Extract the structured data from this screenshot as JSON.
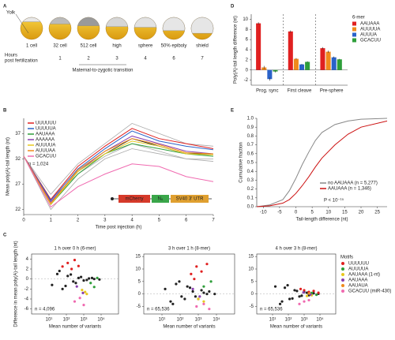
{
  "panels": [
    "A",
    "B",
    "C",
    "D",
    "E"
  ],
  "panel_a": {
    "stages": [
      "1 cell",
      "32 cell",
      "512 cell",
      "high",
      "sphere",
      "50% epiboly",
      "shield"
    ],
    "hours_label": [
      "Hours",
      "post fertilization"
    ],
    "hours": [
      "1",
      "2",
      "3",
      "4",
      "6",
      "7"
    ],
    "transition": "Maternal-to-zygotic transition",
    "yolk_label": "Yolk"
  },
  "chart_data": [
    {
      "type": "line",
      "xlabel": "Time post injection (h)",
      "ylabel": "Mean poly(A)-tail length (nt)",
      "annotation": "n = 1,024",
      "x": [
        0,
        1,
        2,
        3,
        4,
        5,
        6,
        7
      ],
      "xlim": [
        0,
        7
      ],
      "xticks": [
        0,
        1,
        2,
        3,
        4,
        5,
        6,
        7
      ],
      "ylim": [
        21,
        40
      ],
      "yticks": [
        22,
        27,
        32,
        37
      ],
      "legend": "upper-left",
      "construct": [
        "mCherry",
        "N₆",
        "SV40 3′ UTR"
      ],
      "series": [
        {
          "color": "#aaaaaa",
          "values": [
            32.5,
            22.0,
            28.0,
            32.0,
            34.0,
            33.0,
            32.0,
            31.5
          ]
        },
        {
          "color": "#aaaaaa",
          "values": [
            32.5,
            25.0,
            31.0,
            35.0,
            39.0,
            37.0,
            35.0,
            34.5
          ]
        },
        {
          "color": "#aaaaaa",
          "values": [
            32.5,
            24.0,
            29.0,
            32.5,
            35.0,
            33.5,
            32.0,
            32.0
          ]
        },
        {
          "color": "#111111",
          "values": [
            32.5,
            23.5,
            29.5,
            33.0,
            36.0,
            34.5,
            33.0,
            33.0
          ]
        },
        {
          "name": "UUUUUU",
          "color": "#e02020",
          "values": [
            32.5,
            24.0,
            30.5,
            34.5,
            38.0,
            36.0,
            35.0,
            34.0
          ]
        },
        {
          "name": "UUUUUA",
          "color": "#2a62c9",
          "values": [
            32.5,
            23.8,
            30.0,
            34.0,
            37.5,
            35.5,
            34.5,
            33.8
          ]
        },
        {
          "name": "AAUAAA",
          "color": "#2e9e3a",
          "values": [
            32.5,
            23.0,
            29.0,
            33.0,
            35.0,
            34.0,
            33.0,
            32.5
          ]
        },
        {
          "name": "AAAAAA",
          "color": "#8a3fb0",
          "values": [
            32.5,
            23.5,
            29.5,
            33.5,
            36.5,
            35.0,
            33.5,
            33.0
          ]
        },
        {
          "name": "AUUUUA",
          "color": "#e8c81e",
          "values": [
            32.5,
            23.0,
            29.5,
            33.0,
            35.5,
            34.5,
            33.0,
            32.8
          ]
        },
        {
          "name": "AUUUAA",
          "color": "#f08a1c",
          "values": [
            32.5,
            23.2,
            29.8,
            33.5,
            36.0,
            34.8,
            33.2,
            33.0
          ]
        },
        {
          "name": "GCACUU",
          "color": "#f06ab0",
          "values": [
            32.5,
            22.5,
            26.5,
            29.0,
            31.0,
            30.5,
            28.5,
            27.5
          ]
        }
      ]
    },
    {
      "type": "scatter",
      "title": "1 h over 0 h (6-mer)",
      "ylabel": "Difference in mean poly(A)-tail length (nt)",
      "xlabel": "Mean number of variants",
      "annotation": "n = 4,096",
      "frame": true,
      "xscale": "log",
      "xlim": [
        1,
        100000
      ],
      "xticks": [
        {
          "value": 10,
          "label": "10¹"
        },
        {
          "value": 100,
          "label": "10²"
        },
        {
          "value": 1000,
          "label": "10³"
        },
        {
          "value": 10000,
          "label": "10⁴"
        }
      ],
      "ylim": [
        -7,
        5
      ],
      "yticks": [
        -6,
        -4,
        -2,
        0,
        2,
        4
      ],
      "series": [
        {
          "color": "#222222",
          "x": [
            15,
            30,
            60,
            120,
            250,
            500,
            1000,
            2000,
            4000,
            8000,
            40,
            90,
            180,
            350,
            700,
            1500,
            3000
          ],
          "values": [
            -1.2,
            1.0,
            -2.0,
            0.6,
            -0.5,
            0.2,
            -0.3,
            0.1,
            0.0,
            -0.1,
            1.6,
            -1.4,
            0.9,
            -0.8,
            0.4,
            -0.2,
            0.2
          ]
        },
        {
          "color": "#e02020",
          "x": [
            60,
            120,
            200,
            300,
            500
          ],
          "values": [
            2.5,
            3.2,
            2.0,
            3.8,
            2.6
          ]
        },
        {
          "color": "#2e9e3a",
          "x": [
            2500,
            4000,
            6000
          ],
          "values": [
            -0.8,
            -1.6,
            0.2
          ]
        },
        {
          "color": "#e8c81e",
          "x": [
            800,
            1500,
            1200
          ],
          "values": [
            -2.2,
            -3.0,
            -2.6
          ]
        },
        {
          "color": "#8a3fb0",
          "x": [
            400,
            900
          ],
          "values": [
            -1.5,
            -2.8
          ]
        },
        {
          "color": "#f06ab0",
          "x": [
            300,
            600,
            1000
          ],
          "values": [
            -4.5,
            -3.8,
            -5.2
          ]
        }
      ]
    },
    {
      "type": "scatter",
      "title": "3 h over 1 h (8-mer)",
      "xlabel": "Mean number of variants",
      "annotation": "n = 65,536",
      "frame": true,
      "xscale": "log",
      "xlim": [
        1,
        100000
      ],
      "xticks": [
        {
          "value": 10,
          "label": "10¹"
        },
        {
          "value": 100,
          "label": "10²"
        },
        {
          "value": 1000,
          "label": "10³"
        },
        {
          "value": 10000,
          "label": "10⁴"
        }
      ],
      "ylim": [
        -8,
        16
      ],
      "yticks": [
        -5,
        0,
        5,
        10,
        15
      ],
      "series": [
        {
          "color": "#222222",
          "x": [
            15,
            30,
            60,
            120,
            250,
            500,
            1000,
            2000,
            4000,
            8000,
            40,
            90,
            180,
            350,
            700,
            1500,
            3000
          ],
          "values": [
            2,
            -3,
            4,
            -1,
            3,
            1,
            -2,
            0.5,
            1,
            0,
            -4,
            5,
            -2,
            2.5,
            -1,
            1.5,
            0
          ]
        },
        {
          "color": "#e02020",
          "x": [
            400,
            800,
            1500,
            3000,
            600
          ],
          "values": [
            8,
            11,
            9,
            12,
            6
          ]
        },
        {
          "color": "#2e9e3a",
          "x": [
            2000,
            5000
          ],
          "values": [
            3,
            5
          ]
        },
        {
          "color": "#e8c81e",
          "x": [
            1000,
            2000
          ],
          "values": [
            -2,
            -3
          ]
        },
        {
          "color": "#8a3fb0",
          "x": [
            500,
            1200
          ],
          "values": [
            2,
            -1
          ]
        },
        {
          "color": "#f06ab0",
          "x": [
            800,
            2000,
            4000
          ],
          "values": [
            -5,
            -4,
            -6
          ]
        }
      ]
    },
    {
      "type": "scatter",
      "title": "4 h over 3 h (8-mer)",
      "xlabel": "Mean number of variants",
      "annotation": "n = 65,536",
      "frame": true,
      "xscale": "log",
      "legend": "right",
      "legend_title": "Motifs",
      "xlim": [
        1,
        100000
      ],
      "xticks": [
        {
          "value": 10,
          "label": "10¹"
        },
        {
          "value": 100,
          "label": "10²"
        },
        {
          "value": 1000,
          "label": "10³"
        },
        {
          "value": 10000,
          "label": "10⁴"
        }
      ],
      "ylim": [
        -8,
        16
      ],
      "yticks": [
        -5,
        0,
        5,
        10,
        15
      ],
      "series": [
        {
          "color": "#222222",
          "x": [
            15,
            30,
            60,
            120,
            250,
            500,
            1000,
            2000,
            4000,
            8000,
            40,
            90,
            180,
            350,
            700,
            1500,
            3000
          ],
          "values": [
            3,
            -4,
            2.5,
            -2,
            1.5,
            -1,
            0.8,
            -0.5,
            0.3,
            0.1,
            -3,
            3.5,
            -1.8,
            1.2,
            -0.7,
            0.5,
            -0.2
          ]
        },
        {
          "name": "UUUUUU",
          "color": "#e02020",
          "x": [
            1000,
            2000,
            4000,
            8000,
            600
          ],
          "values": [
            1.5,
            0.8,
            1.2,
            0.5,
            2
          ]
        },
        {
          "name": "AUUUUA",
          "color": "#2e9e3a",
          "x": [
            3000,
            6000
          ],
          "values": [
            0.4,
            -0.3
          ]
        },
        {
          "name": "AAUAAA (1-nt)",
          "color": "#e8c81e",
          "x": [
            1500,
            3000
          ],
          "values": [
            -0.8,
            -0.5
          ]
        },
        {
          "name": "AAUAAA",
          "color": "#8a3fb0",
          "x": [
            900,
            2500
          ],
          "values": [
            0.6,
            -0.2
          ]
        },
        {
          "name": "AAUAUA",
          "color": "#f08a1c",
          "x": [
            2000
          ],
          "values": [
            0.2
          ]
        },
        {
          "name": "GCACUU (miR-430)",
          "color": "#f06ab0",
          "x": [
            500,
            1000,
            2000
          ],
          "values": [
            -4,
            -3,
            -2.5
          ]
        }
      ]
    },
    {
      "type": "bar",
      "ylabel": "Poly(A)-tail length difference (nt)",
      "categories": [
        "Prog. sync",
        "First cleave",
        "Pre-sphere"
      ],
      "ylim": [
        -3,
        11
      ],
      "yticks": [
        -2,
        0,
        2,
        4,
        6,
        8,
        10
      ],
      "legend": "right",
      "legend_title": "6-mer",
      "series": [
        {
          "name": "AAUAAA",
          "color": "#e02020",
          "values": [
            9.2,
            7.6,
            4.3
          ],
          "errors": [
            0.2,
            0.2,
            0.2
          ]
        },
        {
          "name": "AUUUUA",
          "color": "#f08a1c",
          "values": [
            0.5,
            2.2,
            3.6
          ],
          "errors": [
            0.3,
            0.15,
            0.2
          ]
        },
        {
          "name": "AUUUA",
          "color": "#2a62c9",
          "values": [
            -1.8,
            1.1,
            2.5
          ],
          "errors": [
            0.3,
            0.1,
            0.15
          ]
        },
        {
          "name": "GCACUU",
          "color": "#2e9e3a",
          "values": [
            -0.3,
            1.6,
            2.1
          ],
          "errors": [
            0.2,
            0.1,
            0.1
          ]
        }
      ]
    },
    {
      "type": "line",
      "xlabel": "Tail-length difference (nt)",
      "ylabel": "Cumulative fraction",
      "annotation": "P < 10⁻¹⁵",
      "legend": "lower-right",
      "x": [
        -12,
        -8,
        -4,
        -2,
        0,
        2,
        4,
        6,
        8,
        12,
        16,
        20,
        28
      ],
      "xlim": [
        -12,
        28
      ],
      "xticks": [
        -10,
        -5,
        0,
        5,
        10,
        15,
        20,
        25
      ],
      "ylim": [
        0,
        1
      ],
      "yticks": [
        {
          "value": 0,
          "label": "0.0"
        },
        0.1,
        0.2,
        0.3,
        0.4,
        0.5,
        0.6,
        0.7,
        0.8,
        0.9,
        {
          "value": 1,
          "label": "1.0"
        }
      ],
      "series": [
        {
          "name": "no AAUAAA (n = 5,277)",
          "color": "#888888",
          "values": [
            0,
            0.02,
            0.08,
            0.18,
            0.32,
            0.48,
            0.62,
            0.75,
            0.84,
            0.93,
            0.97,
            0.99,
            1
          ]
        },
        {
          "name": "AAUAAA (n = 1,346)",
          "color": "#cc1111",
          "values": [
            0,
            0.01,
            0.04,
            0.08,
            0.15,
            0.24,
            0.34,
            0.45,
            0.55,
            0.7,
            0.82,
            0.9,
            0.97
          ]
        }
      ]
    }
  ]
}
